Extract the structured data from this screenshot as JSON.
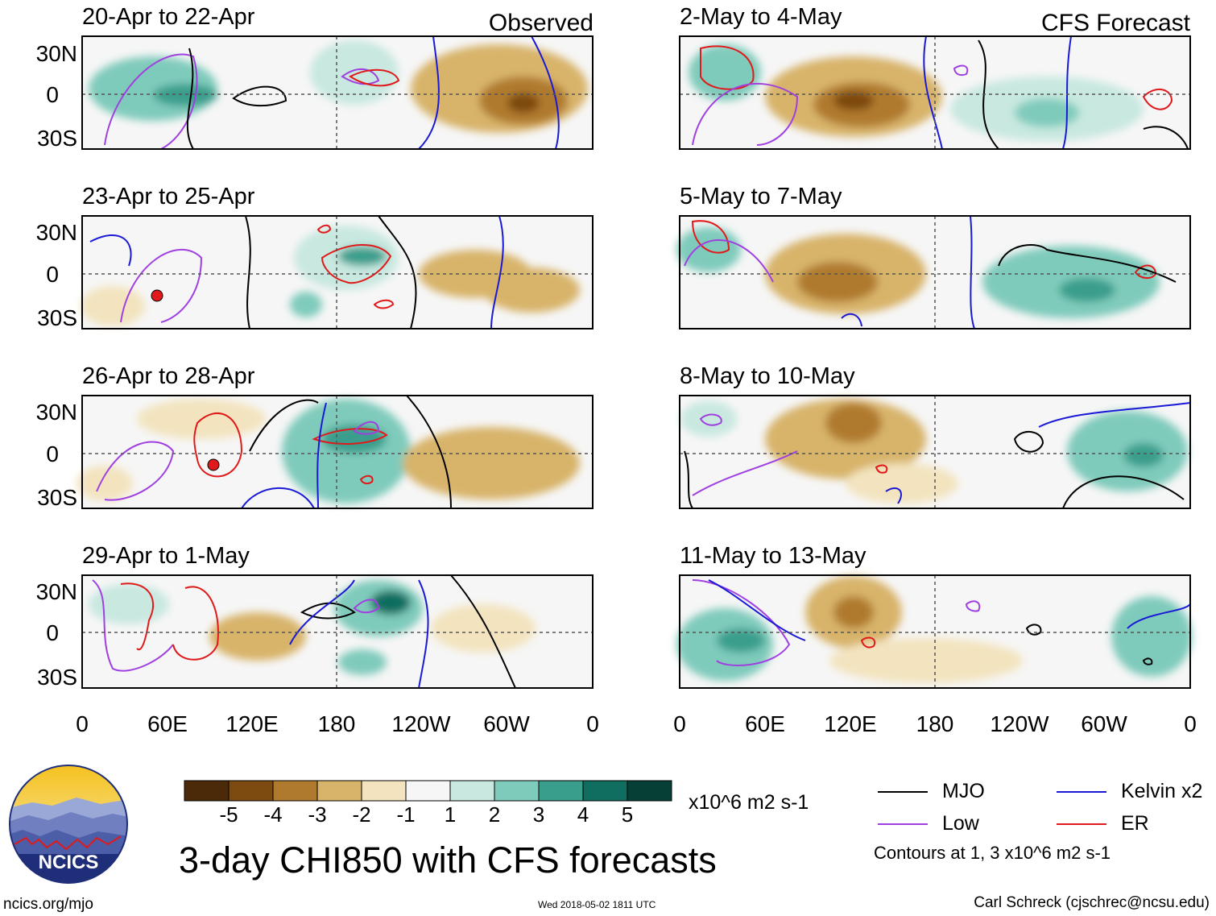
{
  "header": {
    "left_label": "Observed",
    "right_label": "CFS Forecast"
  },
  "panels_left": [
    {
      "title": "20-Apr to 22-Apr"
    },
    {
      "title": "23-Apr to 25-Apr"
    },
    {
      "title": "26-Apr to 28-Apr"
    },
    {
      "title": "29-Apr to 1-May"
    }
  ],
  "panels_right": [
    {
      "title": "2-May to 4-May"
    },
    {
      "title": "5-May to 7-May"
    },
    {
      "title": "8-May to 10-May"
    },
    {
      "title": "11-May to 13-May"
    }
  ],
  "axis": {
    "y_ticks": [
      "30N",
      "0",
      "30S"
    ],
    "x_ticks": [
      "0",
      "60E",
      "120E",
      "180",
      "120W",
      "60W",
      "0"
    ]
  },
  "colorbar": {
    "labels": [
      "-5",
      "-4",
      "-3",
      "-2",
      "-1",
      "1",
      "2",
      "3",
      "4",
      "5"
    ],
    "colors": [
      "#4a2a08",
      "#7d4a10",
      "#b07a2e",
      "#d8b46a",
      "#f3e4bf",
      "#f6f6f6",
      "#c8e8e0",
      "#7fcbbb",
      "#3a9e8c",
      "#0f6e60",
      "#063f36"
    ],
    "units": "x10^6 m2 s-1"
  },
  "legend": {
    "items": [
      {
        "label": "MJO",
        "color": "#000000"
      },
      {
        "label": "Kelvin x2",
        "color": "#1a1ad6"
      },
      {
        "label": "Low",
        "color": "#a040e0"
      },
      {
        "label": "ER",
        "color": "#e01a1a"
      }
    ],
    "contours_note": "Contours at 1, 3 x10^6 m2 s-1"
  },
  "main_title": "3-day CHI850 with CFS forecasts",
  "logo": {
    "text": "NCICS"
  },
  "footer": {
    "url": "ncics.org/mjo",
    "timestamp": "Wed 2018-05-02 1811 UTC",
    "credit": "Carl Schreck (cjschrec@ncsu.edu)"
  }
}
